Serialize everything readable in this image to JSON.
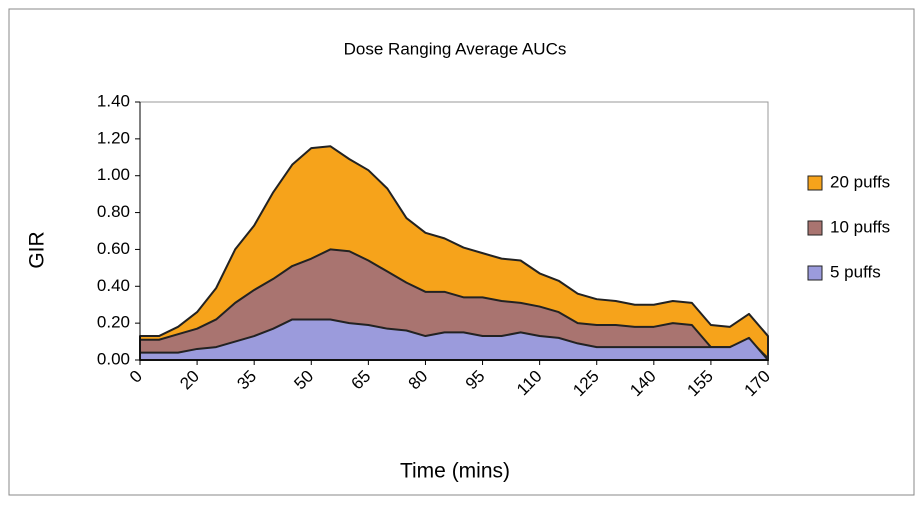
{
  "chart_data": {
    "type": "area",
    "title": "Dose Ranging Average AUCs",
    "x_label": "Time (mins)",
    "y_label": "GIR",
    "categories": [
      0,
      null,
      null,
      20,
      null,
      null,
      35,
      null,
      null,
      50,
      null,
      null,
      65,
      null,
      null,
      80,
      null,
      null,
      95,
      null,
      null,
      110,
      null,
      null,
      125,
      null,
      null,
      140,
      null,
      null,
      155,
      null,
      null,
      170
    ],
    "series": [
      {
        "name": "20 puffs",
        "color": "#f6a31b",
        "values": [
          0.13,
          0.13,
          0.18,
          0.26,
          0.39,
          0.6,
          0.73,
          0.91,
          1.06,
          1.15,
          1.16,
          1.09,
          1.03,
          0.93,
          0.77,
          0.69,
          0.66,
          0.61,
          0.58,
          0.55,
          0.54,
          0.47,
          0.43,
          0.36,
          0.33,
          0.32,
          0.3,
          0.3,
          0.32,
          0.31,
          0.19,
          0.18,
          0.25,
          0.13
        ]
      },
      {
        "name": "10 puffs",
        "color": "#a97470",
        "values": [
          0.11,
          0.11,
          0.14,
          0.17,
          0.22,
          0.31,
          0.38,
          0.44,
          0.51,
          0.55,
          0.6,
          0.59,
          0.54,
          0.48,
          0.42,
          0.37,
          0.37,
          0.34,
          0.34,
          0.32,
          0.31,
          0.29,
          0.26,
          0.2,
          0.19,
          0.19,
          0.18,
          0.18,
          0.2,
          0.19,
          0.07,
          0.07,
          0.11,
          0.01
        ]
      },
      {
        "name": "5 puffs",
        "color": "#9b9bdc",
        "values": [
          0.04,
          0.04,
          0.04,
          0.06,
          0.07,
          0.1,
          0.13,
          0.17,
          0.22,
          0.22,
          0.22,
          0.2,
          0.19,
          0.17,
          0.16,
          0.13,
          0.15,
          0.15,
          0.13,
          0.13,
          0.15,
          0.13,
          0.12,
          0.09,
          0.07,
          0.07,
          0.07,
          0.07,
          0.07,
          0.07,
          0.07,
          0.07,
          0.12,
          0.0
        ]
      }
    ],
    "ylim": [
      0,
      1.4
    ],
    "yticks": [
      {
        "value": 0,
        "label": "0.00"
      },
      {
        "value": 0.2,
        "label": "0.20"
      },
      {
        "value": 0.4,
        "label": "0.40"
      },
      {
        "value": 0.6,
        "label": "0.60"
      },
      {
        "value": 0.8,
        "label": "0.80"
      },
      {
        "value": 1.0,
        "label": "1.00"
      },
      {
        "value": 1.2,
        "label": "1.20"
      },
      {
        "value": 1.4,
        "label": "1.40"
      }
    ],
    "legend": "right"
  }
}
